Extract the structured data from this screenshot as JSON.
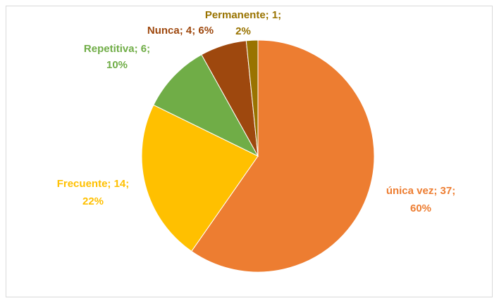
{
  "chart_data": {
    "type": "pie",
    "categories": [
      "única vez",
      "Frecuente",
      "Repetitiva",
      "Nunca",
      "Permanente"
    ],
    "values": [
      37,
      14,
      6,
      4,
      1
    ],
    "value_labels": [
      [
        "única vez; 37;",
        "60%"
      ],
      [
        "Frecuente; 14;",
        "22%"
      ],
      [
        "Repetitiva; 6;",
        "10%"
      ],
      [
        "Nunca; 4; 6%"
      ],
      [
        "Permanente; 1;",
        "2%"
      ]
    ],
    "colors": [
      "#ed7d31",
      "#ffc000",
      "#70ad47",
      "#9e480e",
      "#997300"
    ]
  }
}
